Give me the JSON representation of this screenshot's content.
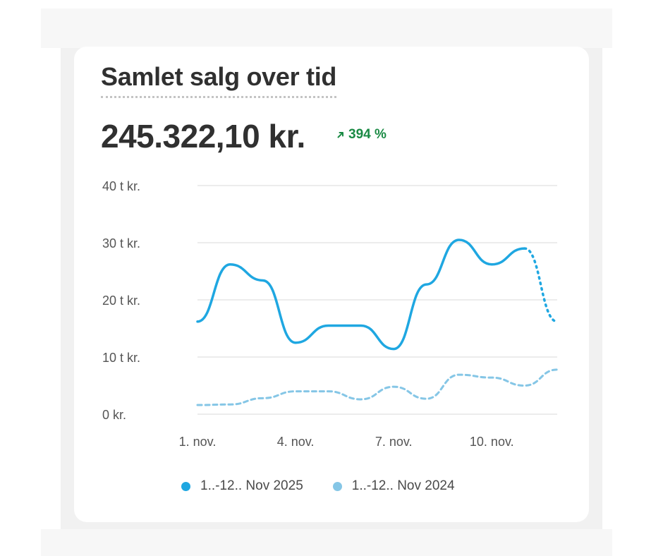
{
  "header": {
    "title": "Samlet salg over tid",
    "total": "245.322,10 kr.",
    "change_icon": "arrow-up-right-icon",
    "change": "394 %"
  },
  "colors": {
    "current": "#1fa7e1",
    "previous": "#85c6e6",
    "change": "#1a8a44"
  },
  "chart_data": {
    "type": "line",
    "title": "Samlet salg over tid",
    "xlabel": "",
    "ylabel": "",
    "x": [
      1,
      2,
      3,
      4,
      5,
      6,
      7,
      8,
      9,
      10,
      11,
      12
    ],
    "x_ticks": [
      {
        "x": 1,
        "label": "1. nov."
      },
      {
        "x": 4,
        "label": "4. nov."
      },
      {
        "x": 7,
        "label": "7. nov."
      },
      {
        "x": 10,
        "label": "10. nov."
      }
    ],
    "y_ticks": [
      {
        "value": 0,
        "label": "0 kr."
      },
      {
        "value": 10000,
        "label": "10 t kr."
      },
      {
        "value": 20000,
        "label": "20 t kr."
      },
      {
        "value": 30000,
        "label": "30 t kr."
      },
      {
        "value": 40000,
        "label": "40 t kr."
      }
    ],
    "ylim": [
      0,
      40000
    ],
    "grid": true,
    "legend_position": "bottom",
    "series": [
      {
        "name": "1..-12.. Nov 2025",
        "values": [
          16200,
          26200,
          23400,
          12500,
          15500,
          15500,
          11400,
          22700,
          30500,
          26200,
          29000,
          16200
        ],
        "style": "solid",
        "dashed_from_index": 10
      },
      {
        "name": "1..-12.. Nov 2024",
        "values": [
          1600,
          1700,
          2800,
          4000,
          4000,
          2600,
          4800,
          2700,
          6900,
          6400,
          5000,
          7800
        ],
        "style": "dotted"
      }
    ]
  }
}
